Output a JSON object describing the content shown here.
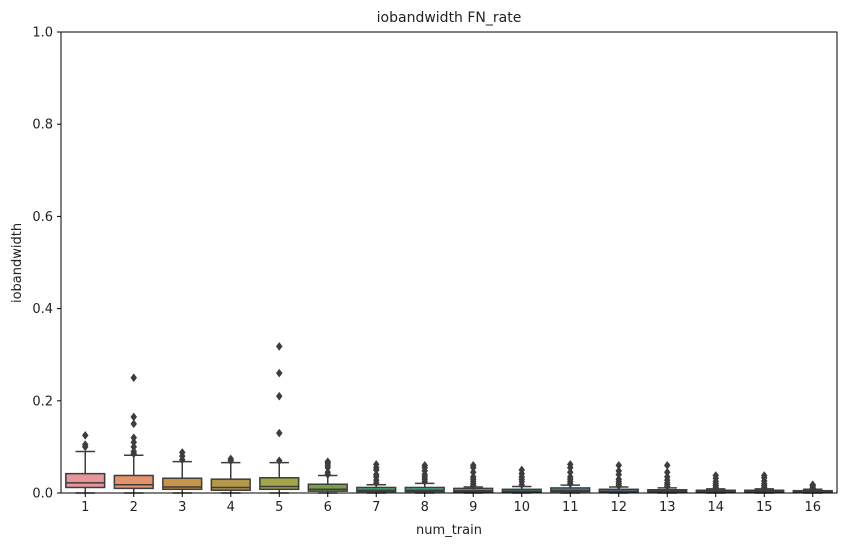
{
  "chart_data": {
    "type": "box",
    "title": "iobandwidth FN_rate",
    "xlabel": "num_train",
    "ylabel": "iobandwidth",
    "ylim": [
      0,
      1.0
    ],
    "yticks": [
      "0.0",
      "0.2",
      "0.4",
      "0.6",
      "0.8",
      "1.0"
    ],
    "grid": false,
    "categories": [
      "1",
      "2",
      "3",
      "4",
      "5",
      "6",
      "7",
      "8",
      "9",
      "10",
      "11",
      "12",
      "13",
      "14",
      "15",
      "16"
    ],
    "colors": [
      "#e8969a",
      "#e5936c",
      "#c8944a",
      "#b4994a",
      "#a2a648",
      "#7ca04a",
      "#4aa872",
      "#4ca68e",
      "#4aa79f",
      "#4aa6ae",
      "#4ca6c2",
      "#6aa2d8",
      "#9a96e0",
      "#c088de",
      "#e080d0",
      "#e68cae"
    ],
    "boxes": [
      {
        "whislo": 0.0,
        "q1": 0.012,
        "med": 0.022,
        "q3": 0.042,
        "whishi": 0.09,
        "fliers": [
          0.1,
          0.105,
          0.125
        ]
      },
      {
        "whislo": 0.0,
        "q1": 0.01,
        "med": 0.018,
        "q3": 0.038,
        "whishi": 0.082,
        "fliers": [
          0.085,
          0.09,
          0.1,
          0.11,
          0.12,
          0.15,
          0.165,
          0.25
        ]
      },
      {
        "whislo": 0.0,
        "q1": 0.008,
        "med": 0.013,
        "q3": 0.032,
        "whishi": 0.068,
        "fliers": [
          0.072,
          0.08,
          0.088
        ]
      },
      {
        "whislo": 0.0,
        "q1": 0.006,
        "med": 0.012,
        "q3": 0.03,
        "whishi": 0.066,
        "fliers": [
          0.07,
          0.074
        ]
      },
      {
        "whislo": 0.0,
        "q1": 0.008,
        "med": 0.014,
        "q3": 0.033,
        "whishi": 0.066,
        "fliers": [
          0.07,
          0.13,
          0.21,
          0.26,
          0.318
        ]
      },
      {
        "whislo": 0.0,
        "q1": 0.004,
        "med": 0.008,
        "q3": 0.019,
        "whishi": 0.038,
        "fliers": [
          0.04,
          0.045,
          0.055,
          0.06,
          0.065,
          0.068
        ]
      },
      {
        "whislo": 0.0,
        "q1": 0.003,
        "med": 0.006,
        "q3": 0.012,
        "whishi": 0.018,
        "fliers": [
          0.022,
          0.028,
          0.035,
          0.04,
          0.05,
          0.055,
          0.062
        ]
      },
      {
        "whislo": 0.0,
        "q1": 0.003,
        "med": 0.006,
        "q3": 0.012,
        "whishi": 0.021,
        "fliers": [
          0.025,
          0.03,
          0.035,
          0.04,
          0.048,
          0.055,
          0.06
        ]
      },
      {
        "whislo": 0.0,
        "q1": 0.002,
        "med": 0.005,
        "q3": 0.01,
        "whishi": 0.013,
        "fliers": [
          0.016,
          0.02,
          0.025,
          0.03,
          0.035,
          0.045,
          0.055,
          0.06
        ]
      },
      {
        "whislo": 0.0,
        "q1": 0.002,
        "med": 0.004,
        "q3": 0.008,
        "whishi": 0.014,
        "fliers": [
          0.018,
          0.025,
          0.03,
          0.035,
          0.042,
          0.05
        ]
      },
      {
        "whislo": 0.0,
        "q1": 0.003,
        "med": 0.006,
        "q3": 0.011,
        "whishi": 0.017,
        "fliers": [
          0.02,
          0.025,
          0.03,
          0.035,
          0.045,
          0.055,
          0.062
        ]
      },
      {
        "whislo": 0.0,
        "q1": 0.002,
        "med": 0.004,
        "q3": 0.008,
        "whishi": 0.013,
        "fliers": [
          0.016,
          0.02,
          0.025,
          0.03,
          0.04,
          0.048,
          0.06
        ]
      },
      {
        "whislo": 0.0,
        "q1": 0.002,
        "med": 0.004,
        "q3": 0.007,
        "whishi": 0.011,
        "fliers": [
          0.014,
          0.018,
          0.022,
          0.028,
          0.035,
          0.045,
          0.06
        ]
      },
      {
        "whislo": 0.0,
        "q1": 0.001,
        "med": 0.003,
        "q3": 0.006,
        "whishi": 0.009,
        "fliers": [
          0.012,
          0.016,
          0.02,
          0.025,
          0.032,
          0.038
        ]
      },
      {
        "whislo": 0.0,
        "q1": 0.001,
        "med": 0.003,
        "q3": 0.006,
        "whishi": 0.009,
        "fliers": [
          0.012,
          0.016,
          0.02,
          0.026,
          0.033,
          0.038
        ]
      },
      {
        "whislo": 0.0,
        "q1": 0.001,
        "med": 0.002,
        "q3": 0.005,
        "whishi": 0.008,
        "fliers": [
          0.01,
          0.013,
          0.016,
          0.018
        ]
      }
    ]
  }
}
